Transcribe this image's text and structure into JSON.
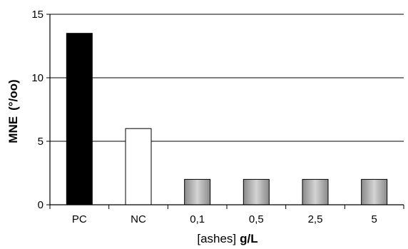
{
  "chart_data": {
    "type": "bar",
    "categories": [
      "PC",
      "NC",
      "0,1",
      "0,5",
      "2,5",
      "5"
    ],
    "values": [
      13.5,
      6,
      2,
      2,
      2,
      2
    ],
    "bar_colors": [
      "#000000",
      "#ffffff",
      "gray-gradient",
      "gray-gradient",
      "gray-gradient",
      "gray-gradient"
    ],
    "ylim": [
      0,
      15
    ],
    "yticks": [
      "0",
      "5",
      "10",
      "15"
    ],
    "ytick_values": [
      0,
      5,
      10,
      15
    ],
    "ylabel": "MNE",
    "ylabel_unit": "(°/oo)",
    "xlabel_prefix": "[ashes]",
    "xlabel_unit": "g/L",
    "grid": true,
    "legend": "none"
  }
}
